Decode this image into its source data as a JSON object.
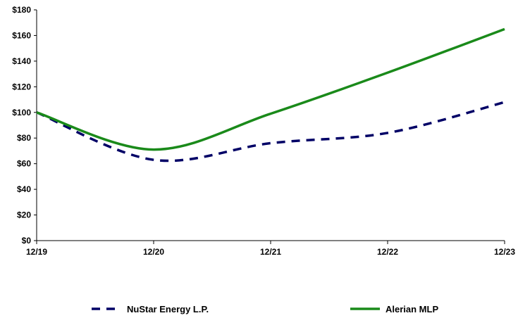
{
  "chart_data": {
    "type": "line",
    "title": "",
    "xlabel": "",
    "ylabel": "",
    "categories": [
      "12/19",
      "12/20",
      "12/21",
      "12/22",
      "12/23"
    ],
    "ylim": [
      0,
      180
    ],
    "yticks": [
      "$0",
      "$20",
      "$40",
      "$60",
      "$80",
      "$100",
      "$120",
      "$140",
      "$160",
      "$180"
    ],
    "grid": false,
    "legend_position": "bottom",
    "series": [
      {
        "name": "NuStar Energy L.P.",
        "color": "#000066",
        "dash": true,
        "values": [
          100,
          63,
          76,
          84,
          108
        ]
      },
      {
        "name": "Alerian MLP",
        "color": "#1a8a1a",
        "dash": false,
        "values": [
          100,
          71,
          99,
          131,
          165
        ]
      }
    ]
  }
}
